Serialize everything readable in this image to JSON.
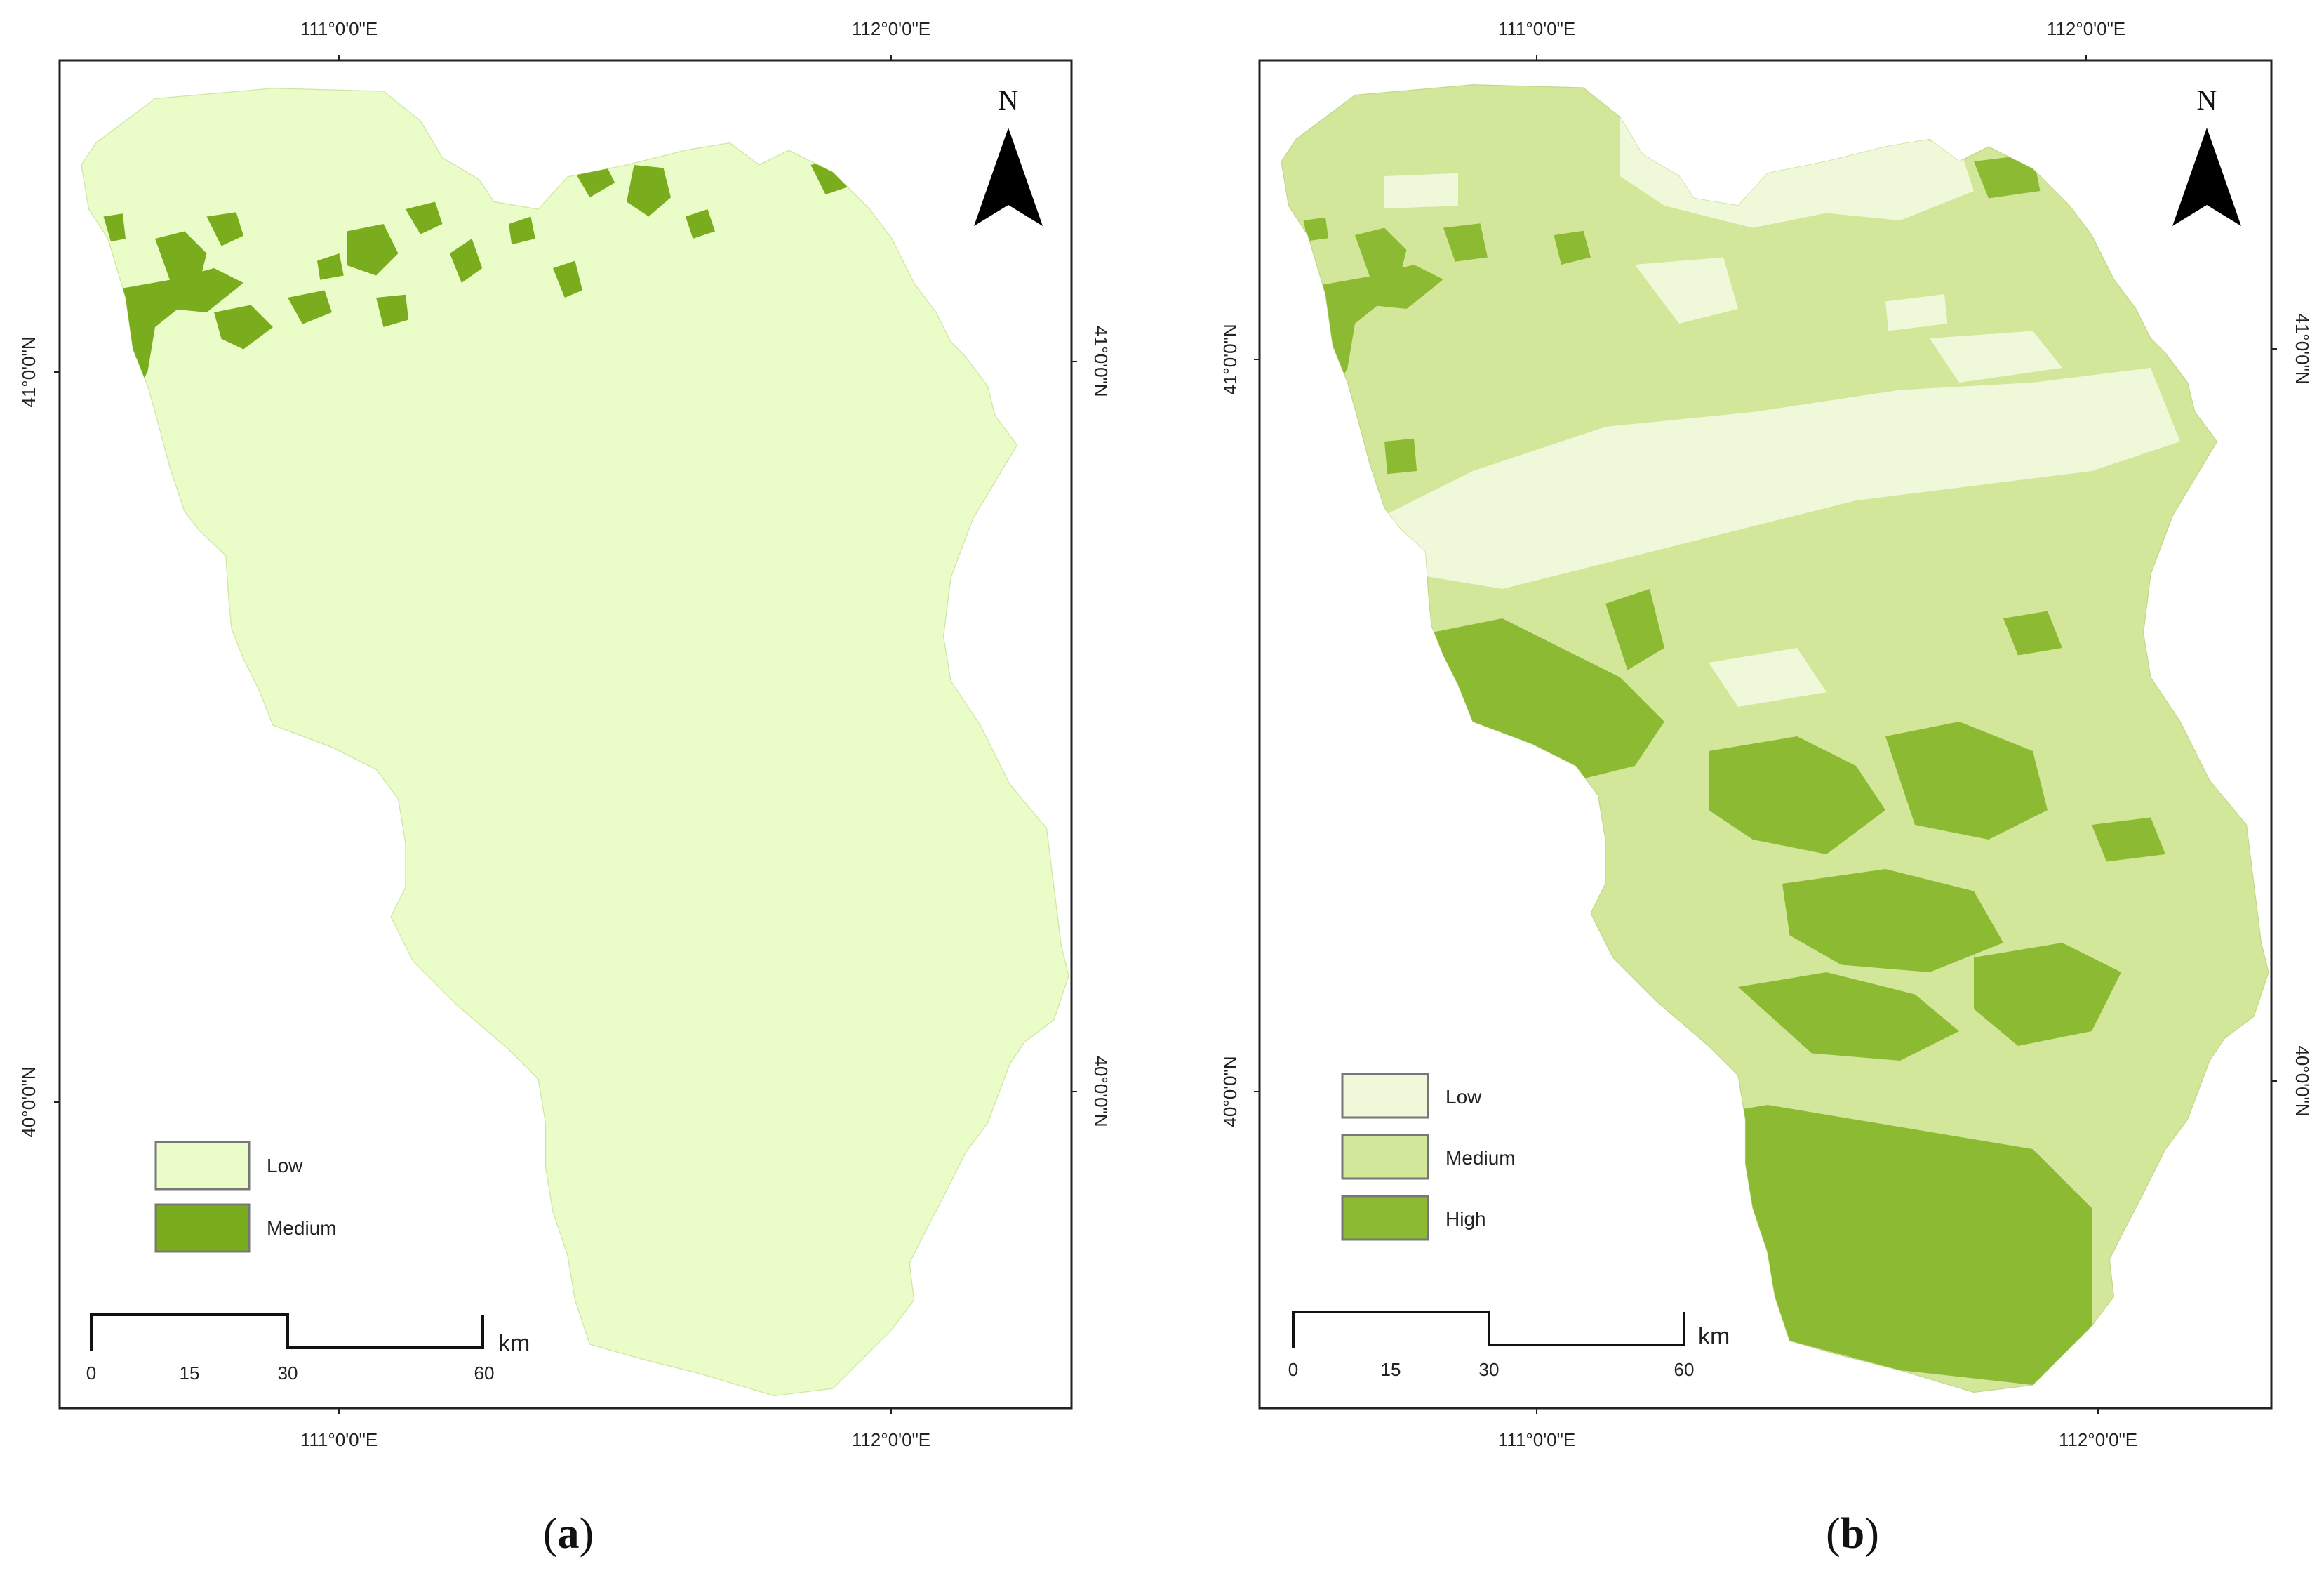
{
  "colors": {
    "low": "#eafcc8",
    "medium_a": "#7aad1e",
    "low_b": "#eff9d9",
    "medium_b": "#d3e79a",
    "high_b": "#8cbb33",
    "frame": "#222222"
  },
  "panels": [
    {
      "caption_open": "(",
      "caption_letter": "a",
      "caption_close": ")",
      "north": "N",
      "lon_labels": [
        "111°0'0\"E",
        "112°0'0\"E"
      ],
      "lat_labels": [
        "41°0'0\"N",
        "40°0'0\"N"
      ],
      "legend": [
        {
          "label": "Low",
          "color": "#eafcc8"
        },
        {
          "label": "Medium",
          "color": "#7aad1e"
        }
      ],
      "scalebar": {
        "ticks": [
          "0",
          "15",
          "30",
          "60"
        ],
        "unit": "km"
      }
    },
    {
      "caption_open": "(",
      "caption_letter": "b",
      "caption_close": ")",
      "north": "N",
      "lon_labels": [
        "111°0'0\"E",
        "112°0'0\"E"
      ],
      "lat_labels": [
        "41°0'0\"N",
        "40°0'0\"N"
      ],
      "legend": [
        {
          "label": "Low",
          "color": "#eff9d9"
        },
        {
          "label": "Medium",
          "color": "#d3e79a"
        },
        {
          "label": "High",
          "color": "#8cbb33"
        }
      ],
      "scalebar": {
        "ticks": [
          "0",
          "15",
          "30",
          "60"
        ],
        "unit": "km"
      }
    }
  ]
}
